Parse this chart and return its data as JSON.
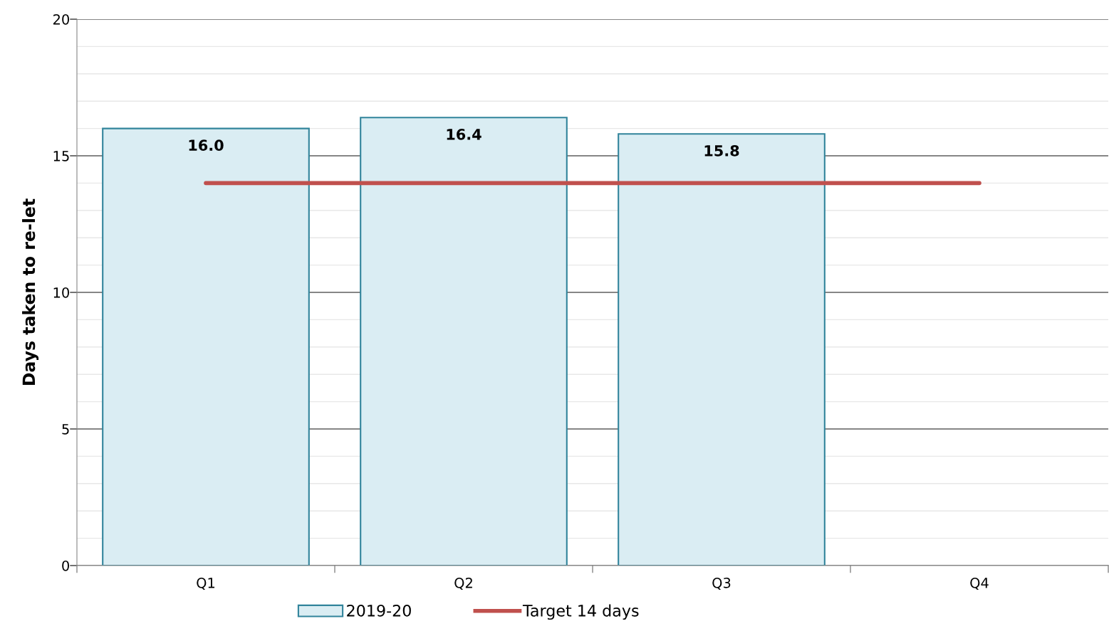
{
  "chart_data": {
    "type": "bar",
    "ylabel": "Days taken to re-let",
    "categories": [
      "Q1",
      "Q2",
      "Q3",
      "Q4"
    ],
    "series": [
      {
        "name": "2019-20",
        "color": "#daedf3",
        "values": [
          16.0,
          16.4,
          15.8,
          null
        ],
        "value_labels": [
          "16.0",
          "16.4",
          "15.8",
          null
        ]
      },
      {
        "name": "Target 14 days",
        "type": "line",
        "color": "#c0504d",
        "values": [
          14,
          14,
          14,
          14
        ]
      }
    ],
    "ylim": [
      0,
      20
    ],
    "yticks": [
      0,
      {
        "value": 1,
        "label": null
      },
      {
        "value": 2,
        "label": null
      },
      {
        "value": 3,
        "label": null
      },
      {
        "value": 4,
        "label": null
      },
      5,
      {
        "value": 6,
        "label": null
      },
      {
        "value": 7,
        "label": null
      },
      {
        "value": 8,
        "label": null
      },
      {
        "value": 9,
        "label": null
      },
      10,
      {
        "value": 11,
        "label": null
      },
      {
        "value": 12,
        "label": null
      },
      {
        "value": 13,
        "label": null
      },
      {
        "value": 14,
        "label": null
      },
      15,
      {
        "value": 16,
        "label": null
      },
      {
        "value": 17,
        "label": null
      },
      {
        "value": 18,
        "label": null
      },
      {
        "value": 19,
        "label": null
      },
      20
    ],
    "grid": "y",
    "legend": "bottom",
    "marker": "none",
    "line_style": "solid"
  }
}
